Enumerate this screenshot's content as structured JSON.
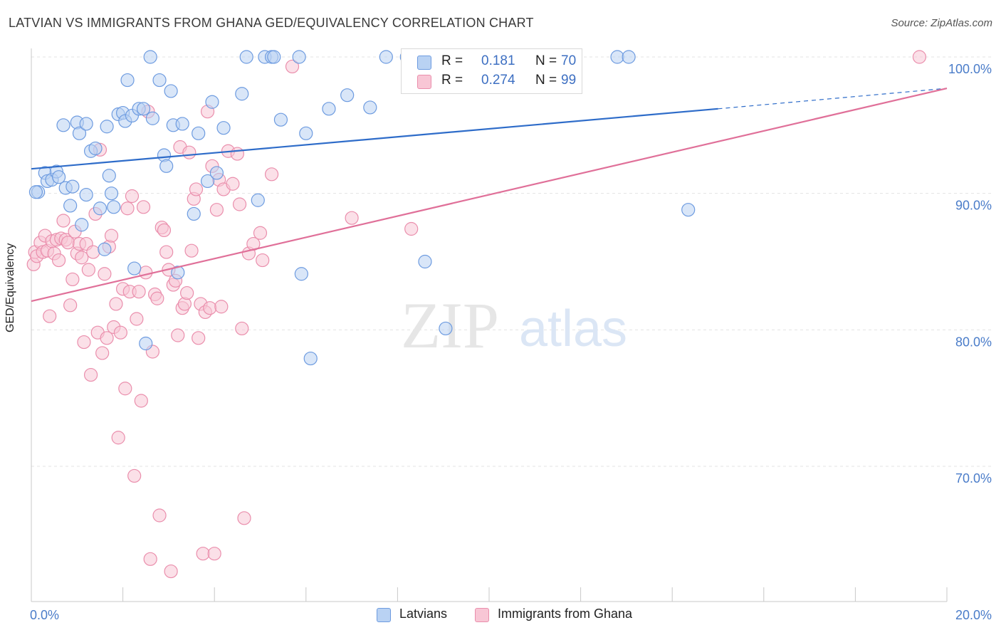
{
  "title": "LATVIAN VS IMMIGRANTS FROM GHANA GED/EQUIVALENCY CORRELATION CHART",
  "source": "Source: ZipAtlas.com",
  "watermark": {
    "zip": "ZIP",
    "atlas": "atlas"
  },
  "colors": {
    "blue_fill": "#b9d2f3",
    "blue_stroke": "#6d9be0",
    "blue_line": "#2e6cc9",
    "pink_fill": "#f8c6d5",
    "pink_stroke": "#ea8eac",
    "pink_line": "#e07099",
    "tick_label": "#4a7cc9",
    "grid": "#e3e3e3"
  },
  "legend": {
    "rows": [
      {
        "r_label": "R =",
        "r_value": "0.181",
        "n_label": "N =",
        "n_value": "70"
      },
      {
        "r_label": "R =",
        "r_value": "0.274",
        "n_label": "N =",
        "n_value": "99"
      }
    ]
  },
  "bottom_legend": [
    "Latvians",
    "Immigrants from Ghana"
  ],
  "chart_data": {
    "type": "scatter",
    "title": "LATVIAN VS IMMIGRANTS FROM GHANA GED/EQUIVALENCY CORRELATION CHART",
    "xlabel": "",
    "ylabel": "GED/Equivalency",
    "x_ticks": [
      "0.0%",
      "20.0%"
    ],
    "y_ticks": [
      "100.0%",
      "90.0%",
      "80.0%",
      "70.0%"
    ],
    "xlim": [
      0,
      20
    ],
    "ylim": [
      60,
      101.5
    ],
    "grid": true,
    "legend_position": "top-center",
    "series": [
      {
        "name": "Latvians",
        "r": 0.181,
        "n": 70,
        "trend": {
          "x0": 0,
          "y0": 91.8,
          "x1": 15,
          "y1": 96.2,
          "dashed_to_x": 20,
          "dashed_to_y": 97.7
        },
        "points": [
          [
            0.15,
            90.1
          ],
          [
            0.3,
            91.5
          ],
          [
            0.35,
            90.9
          ],
          [
            0.45,
            91.0
          ],
          [
            0.55,
            91.6
          ],
          [
            0.6,
            91.2
          ],
          [
            0.7,
            95.0
          ],
          [
            0.75,
            90.4
          ],
          [
            0.85,
            89.1
          ],
          [
            0.9,
            90.5
          ],
          [
            1.0,
            95.2
          ],
          [
            1.05,
            94.4
          ],
          [
            1.1,
            87.7
          ],
          [
            1.2,
            95.1
          ],
          [
            1.2,
            89.9
          ],
          [
            1.3,
            93.1
          ],
          [
            1.4,
            93.3
          ],
          [
            1.5,
            88.9
          ],
          [
            1.6,
            85.9
          ],
          [
            1.65,
            94.9
          ],
          [
            1.7,
            91.3
          ],
          [
            1.75,
            90.0
          ],
          [
            1.8,
            89.0
          ],
          [
            1.9,
            95.8
          ],
          [
            2.0,
            95.9
          ],
          [
            2.05,
            95.3
          ],
          [
            2.1,
            98.3
          ],
          [
            2.2,
            95.7
          ],
          [
            2.25,
            84.5
          ],
          [
            2.35,
            96.2
          ],
          [
            2.45,
            96.2
          ],
          [
            2.5,
            79.0
          ],
          [
            2.6,
            100.0
          ],
          [
            2.65,
            95.5
          ],
          [
            2.8,
            98.3
          ],
          [
            2.9,
            92.8
          ],
          [
            2.95,
            92.0
          ],
          [
            3.05,
            97.5
          ],
          [
            3.1,
            95.0
          ],
          [
            3.2,
            84.2
          ],
          [
            3.3,
            95.1
          ],
          [
            3.55,
            88.5
          ],
          [
            3.65,
            94.4
          ],
          [
            3.85,
            90.9
          ],
          [
            3.95,
            96.7
          ],
          [
            4.05,
            91.5
          ],
          [
            4.2,
            94.8
          ],
          [
            4.6,
            97.3
          ],
          [
            4.7,
            100.0
          ],
          [
            4.95,
            89.5
          ],
          [
            5.1,
            100.0
          ],
          [
            5.25,
            100.0
          ],
          [
            5.3,
            100.0
          ],
          [
            5.45,
            95.4
          ],
          [
            5.85,
            100.0
          ],
          [
            5.9,
            84.1
          ],
          [
            6.0,
            94.4
          ],
          [
            6.1,
            77.9
          ],
          [
            6.5,
            96.2
          ],
          [
            6.9,
            97.2
          ],
          [
            7.4,
            96.3
          ],
          [
            7.75,
            100.0
          ],
          [
            8.2,
            100.0
          ],
          [
            8.6,
            85.0
          ],
          [
            9.05,
            80.1
          ],
          [
            10.6,
            100.0
          ],
          [
            12.8,
            100.0
          ],
          [
            13.05,
            100.0
          ],
          [
            14.35,
            88.8
          ],
          [
            0.1,
            90.1
          ]
        ]
      },
      {
        "name": "Immigrants from Ghana",
        "r": 0.274,
        "n": 99,
        "trend": {
          "x0": 0,
          "y0": 82.1,
          "x1": 20,
          "y1": 97.7
        },
        "points": [
          [
            0.05,
            84.8
          ],
          [
            0.08,
            85.7
          ],
          [
            0.12,
            85.4
          ],
          [
            0.2,
            86.4
          ],
          [
            0.25,
            85.7
          ],
          [
            0.3,
            86.9
          ],
          [
            0.35,
            85.8
          ],
          [
            0.4,
            81.0
          ],
          [
            0.45,
            86.5
          ],
          [
            0.5,
            85.6
          ],
          [
            0.55,
            86.6
          ],
          [
            0.6,
            85.1
          ],
          [
            0.65,
            86.7
          ],
          [
            0.7,
            88.0
          ],
          [
            0.75,
            86.6
          ],
          [
            0.8,
            86.4
          ],
          [
            0.85,
            81.8
          ],
          [
            0.9,
            83.7
          ],
          [
            0.95,
            87.2
          ],
          [
            1.0,
            85.6
          ],
          [
            1.05,
            86.3
          ],
          [
            1.1,
            85.3
          ],
          [
            1.15,
            79.1
          ],
          [
            1.2,
            86.3
          ],
          [
            1.25,
            84.4
          ],
          [
            1.3,
            76.7
          ],
          [
            1.35,
            85.7
          ],
          [
            1.4,
            88.5
          ],
          [
            1.45,
            79.8
          ],
          [
            1.5,
            93.2
          ],
          [
            1.55,
            78.3
          ],
          [
            1.6,
            84.1
          ],
          [
            1.65,
            79.4
          ],
          [
            1.7,
            86.1
          ],
          [
            1.75,
            86.9
          ],
          [
            1.8,
            80.2
          ],
          [
            1.85,
            81.9
          ],
          [
            1.9,
            72.1
          ],
          [
            1.95,
            79.8
          ],
          [
            2.0,
            83.0
          ],
          [
            2.05,
            75.7
          ],
          [
            2.1,
            88.9
          ],
          [
            2.15,
            82.8
          ],
          [
            2.2,
            89.8
          ],
          [
            2.25,
            69.3
          ],
          [
            2.3,
            80.8
          ],
          [
            2.35,
            82.8
          ],
          [
            2.4,
            74.8
          ],
          [
            2.45,
            89.0
          ],
          [
            2.5,
            84.2
          ],
          [
            2.55,
            96.0
          ],
          [
            2.6,
            63.2
          ],
          [
            2.65,
            78.4
          ],
          [
            2.7,
            82.6
          ],
          [
            2.75,
            82.3
          ],
          [
            2.8,
            66.4
          ],
          [
            2.85,
            87.5
          ],
          [
            2.9,
            87.3
          ],
          [
            2.95,
            85.7
          ],
          [
            3.0,
            84.4
          ],
          [
            3.05,
            62.3
          ],
          [
            3.1,
            83.3
          ],
          [
            3.15,
            83.6
          ],
          [
            3.2,
            79.6
          ],
          [
            3.25,
            93.4
          ],
          [
            3.3,
            81.6
          ],
          [
            3.35,
            81.9
          ],
          [
            3.4,
            82.7
          ],
          [
            3.45,
            93.0
          ],
          [
            3.5,
            85.8
          ],
          [
            3.55,
            89.6
          ],
          [
            3.6,
            90.3
          ],
          [
            3.65,
            79.4
          ],
          [
            3.7,
            81.9
          ],
          [
            3.75,
            63.6
          ],
          [
            3.8,
            81.3
          ],
          [
            3.85,
            96.0
          ],
          [
            3.9,
            81.6
          ],
          [
            3.95,
            92.0
          ],
          [
            4.0,
            63.6
          ],
          [
            4.05,
            88.8
          ],
          [
            4.1,
            91.0
          ],
          [
            4.15,
            81.7
          ],
          [
            4.2,
            90.3
          ],
          [
            4.3,
            93.1
          ],
          [
            4.4,
            90.7
          ],
          [
            4.5,
            92.9
          ],
          [
            4.55,
            89.2
          ],
          [
            4.6,
            80.1
          ],
          [
            4.65,
            66.2
          ],
          [
            4.75,
            85.6
          ],
          [
            4.85,
            86.3
          ],
          [
            5.0,
            87.1
          ],
          [
            5.05,
            85.1
          ],
          [
            5.25,
            91.4
          ],
          [
            5.7,
            99.3
          ],
          [
            7.0,
            88.2
          ],
          [
            8.3,
            87.4
          ],
          [
            19.4,
            100.0
          ]
        ]
      }
    ]
  }
}
